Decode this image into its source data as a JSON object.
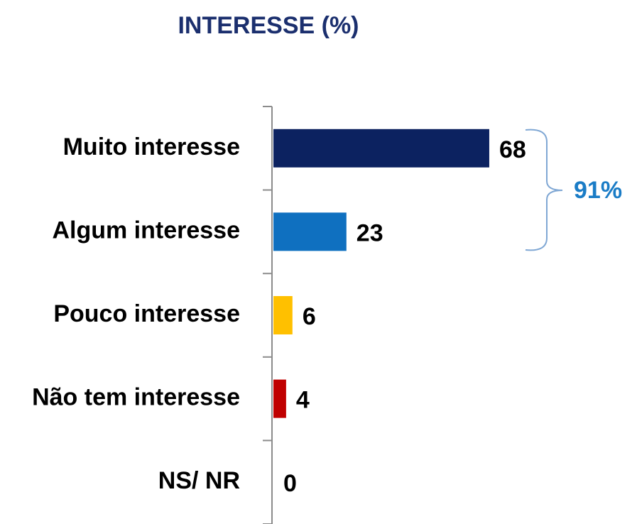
{
  "chart_data": {
    "type": "hbar",
    "title": "INTERESSE (%)",
    "categories": [
      "Muito interesse",
      "Algum interesse",
      "Pouco interesse",
      "Não tem interesse",
      "NS/ NR"
    ],
    "values": [
      68,
      23,
      6,
      4,
      0
    ],
    "colors": [
      "#0c2260",
      "#0f70c0",
      "#ffc000",
      "#c00000",
      "#7f7f7f"
    ],
    "xlim": [
      0,
      100
    ],
    "annotation": "91%"
  }
}
